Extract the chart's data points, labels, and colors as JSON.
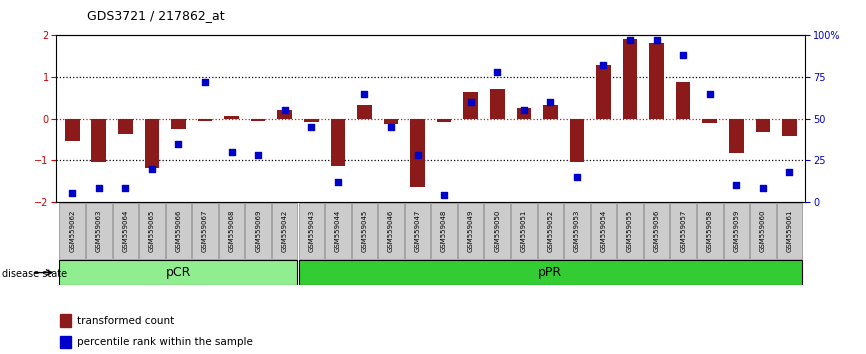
{
  "title": "GDS3721 / 217862_at",
  "samples": [
    "GSM559062",
    "GSM559063",
    "GSM559064",
    "GSM559065",
    "GSM559066",
    "GSM559067",
    "GSM559068",
    "GSM559069",
    "GSM559042",
    "GSM559043",
    "GSM559044",
    "GSM559045",
    "GSM559046",
    "GSM559047",
    "GSM559048",
    "GSM559049",
    "GSM559050",
    "GSM559051",
    "GSM559052",
    "GSM559053",
    "GSM559054",
    "GSM559055",
    "GSM559056",
    "GSM559057",
    "GSM559058",
    "GSM559059",
    "GSM559060",
    "GSM559061"
  ],
  "bar_values": [
    -0.55,
    -1.05,
    -0.38,
    -1.18,
    -0.25,
    -0.06,
    0.06,
    -0.06,
    0.2,
    -0.08,
    -1.15,
    0.32,
    -0.12,
    -1.65,
    -0.08,
    0.65,
    0.72,
    0.25,
    0.32,
    -1.05,
    1.28,
    1.92,
    1.82,
    0.88,
    -0.1,
    -0.82,
    -0.32,
    -0.42
  ],
  "percentile_values": [
    5,
    8,
    8,
    20,
    35,
    72,
    30,
    28,
    55,
    45,
    12,
    65,
    45,
    28,
    4,
    60,
    78,
    55,
    60,
    15,
    82,
    97,
    97,
    88,
    65,
    10,
    8,
    18
  ],
  "pCR_count": 9,
  "pPR_count": 19,
  "bar_color": "#8B1A1A",
  "dot_color": "#0000CC",
  "background_color": "#FFFFFF",
  "ylim": [
    -2,
    2
  ],
  "yticks": [
    -2,
    -1,
    0,
    1,
    2
  ],
  "right_yticks": [
    0,
    25,
    50,
    75,
    100
  ],
  "right_yticklabels": [
    "0",
    "25",
    "50",
    "75",
    "100%"
  ],
  "pCR_color": "#90EE90",
  "pPR_color": "#33CC33",
  "title_color": "#000000",
  "right_axis_color": "#0000CC",
  "left_axis_color": "#CC0000"
}
